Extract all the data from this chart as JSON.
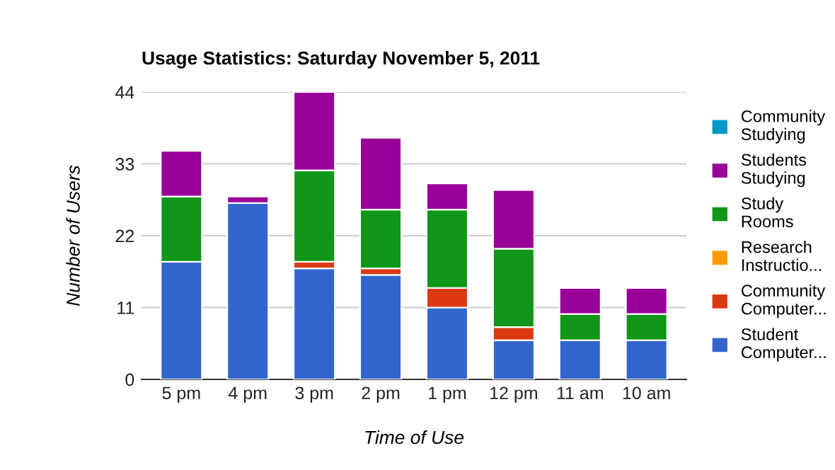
{
  "chart_data": {
    "type": "bar",
    "title": "Usage Statistics: Saturday November 5, 2011",
    "xlabel": "Time of Use",
    "ylabel": "Number of Users",
    "categories": [
      "5 pm",
      "4 pm",
      "3 pm",
      "2 pm",
      "1 pm",
      "12 pm",
      "11 am",
      "10 am"
    ],
    "stacked": true,
    "ylim": [
      0,
      44
    ],
    "yticks": [
      0,
      11,
      22,
      33,
      44
    ],
    "grid": "y",
    "legend": "right",
    "series": [
      {
        "name": "Student Computer...",
        "color": "#3366cc",
        "values": [
          18,
          27,
          17,
          16,
          11,
          6,
          6,
          6
        ]
      },
      {
        "name": "Community Computer...",
        "color": "#dc3912",
        "values": [
          0,
          0,
          1,
          1,
          3,
          2,
          0,
          0
        ]
      },
      {
        "name": "Research Instructio...",
        "color": "#ff9900",
        "values": [
          0,
          0,
          0,
          0,
          0,
          0,
          0,
          0
        ]
      },
      {
        "name": "Study Rooms",
        "color": "#109618",
        "values": [
          10,
          0,
          14,
          9,
          12,
          12,
          4,
          4
        ]
      },
      {
        "name": "Students Studying",
        "color": "#990099",
        "values": [
          7,
          1,
          12,
          11,
          4,
          9,
          4,
          4
        ]
      },
      {
        "name": "Community Studying",
        "color": "#0099c6",
        "values": [
          0,
          0,
          0,
          0,
          0,
          0,
          0,
          0
        ]
      }
    ]
  }
}
